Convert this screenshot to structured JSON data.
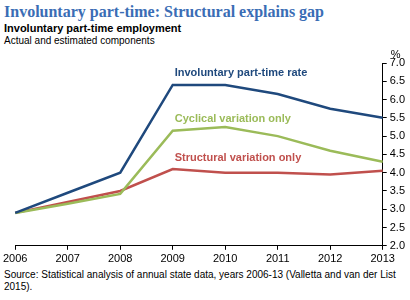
{
  "chart_data": {
    "type": "line",
    "title": "Involuntary part-time: Structural explains gap",
    "subtitle": [
      "Involuntary part-time employment",
      "Actual and estimated components"
    ],
    "ylabel": "%",
    "source": "Source: Statistical analysis of annual state data, years 2006-13 (Valletta and van der List 2015).",
    "categories": [
      "2006",
      "2007",
      "2008",
      "2009",
      "2010",
      "2011",
      "2012",
      "2013"
    ],
    "series": [
      {
        "name": "Involuntary part-time rate",
        "color": "#1f497d",
        "values": [
          2.9,
          3.45,
          4.0,
          6.4,
          6.4,
          6.15,
          5.75,
          5.5
        ]
      },
      {
        "name": "Cyclical variation only",
        "color": "#9bbb59",
        "values": [
          2.9,
          3.15,
          3.42,
          5.15,
          5.25,
          5.0,
          4.6,
          4.3
        ]
      },
      {
        "name": "Structural variation only",
        "color": "#c0504d",
        "values": [
          2.9,
          3.2,
          3.5,
          4.1,
          4.0,
          4.0,
          3.95,
          4.05
        ]
      }
    ],
    "ylim": [
      2,
      7
    ],
    "yticks": [
      {
        "value": 2,
        "label": "2.0"
      },
      2.5,
      {
        "value": 3,
        "label": "3.0"
      },
      3.5,
      {
        "value": 4,
        "label": "4.0"
      },
      4.5,
      {
        "value": 5,
        "label": "5.0"
      },
      5.5,
      {
        "value": 6,
        "label": "6.0"
      },
      6.5,
      {
        "value": 7,
        "label": "7.0"
      }
    ],
    "grid": false
  }
}
